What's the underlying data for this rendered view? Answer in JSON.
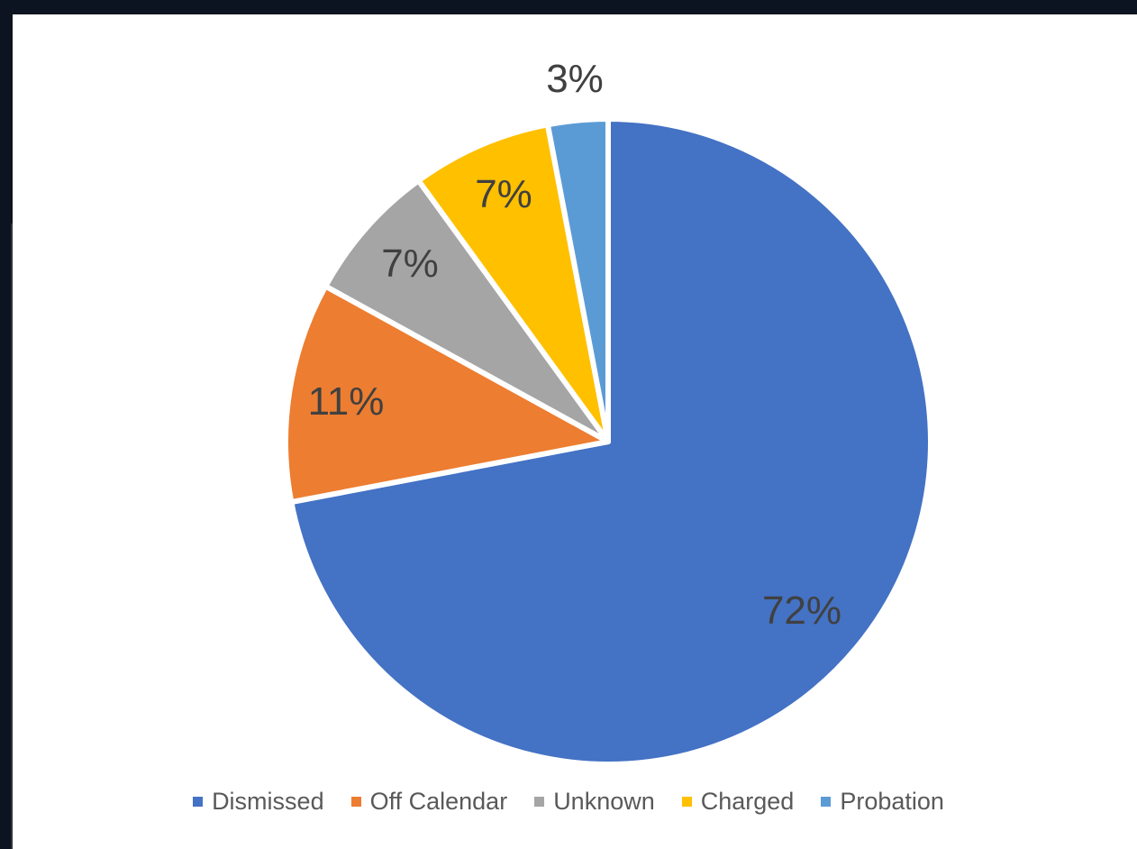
{
  "chart_data": {
    "type": "pie",
    "categories": [
      "Dismissed",
      "Off Calendar",
      "Unknown",
      "Charged",
      "Probation"
    ],
    "values": [
      72,
      11,
      7,
      7,
      3
    ],
    "labels": [
      "72%",
      "11%",
      "7%",
      "7%",
      "3%"
    ],
    "colors": [
      "#4472c4",
      "#ed7d31",
      "#a5a5a5",
      "#ffc000",
      "#5b9bd5"
    ],
    "legend_position": "bottom",
    "start_angle_deg": 0,
    "direction": "clockwise"
  }
}
